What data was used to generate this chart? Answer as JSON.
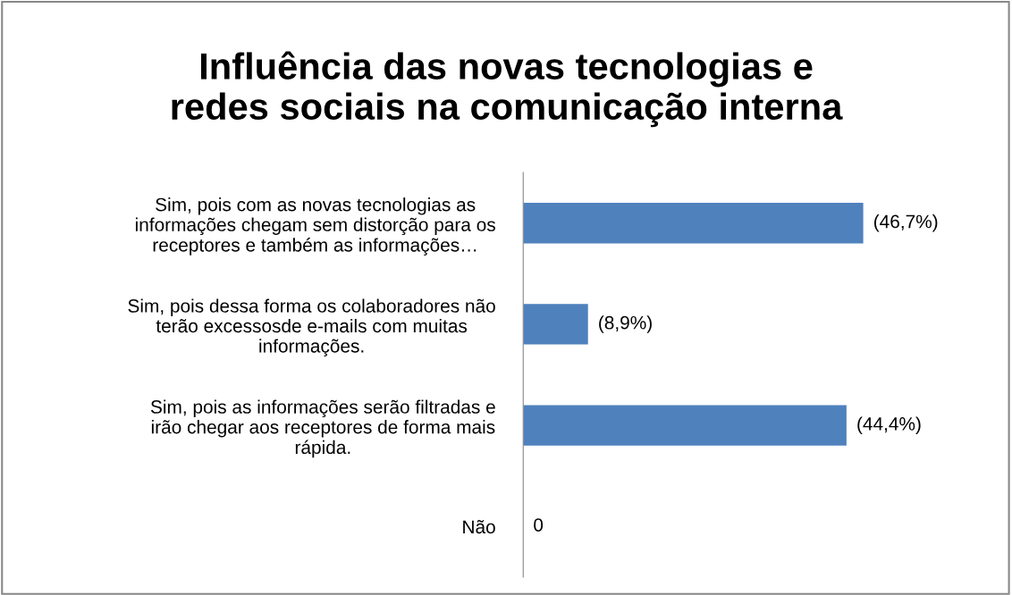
{
  "chart_data": {
    "type": "bar",
    "orientation": "horizontal",
    "title": "Influência das novas tecnologias e\nredes sociais na comunicação interna",
    "categories": [
      "Sim, pois com as novas tecnologias as\ninformações chegam sem distorção para os\nreceptores e também as informações…",
      "Sim, pois dessa forma os colaboradores não\nterão excessosde e-mails com muitas\ninformações.",
      "Sim, pois as informações serão filtradas e\nirão chegar aos receptores de forma mais\nrápida.",
      "Não"
    ],
    "values": [
      46.7,
      8.9,
      44.4,
      0
    ],
    "color": "#4f81bd",
    "value_labels": [
      "(46,7%)",
      "(8,9%)",
      "(44,4%)",
      "0"
    ],
    "grid": false,
    "legend": false
  }
}
